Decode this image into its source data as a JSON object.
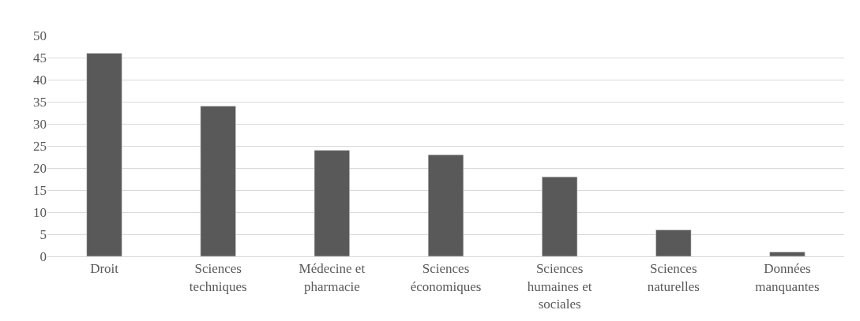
{
  "chart_data": {
    "type": "bar",
    "categories": [
      "Droit",
      "Sciences techniques",
      "Médecine et pharmacie",
      "Sciences économiques",
      "Sciences humaines et sociales",
      "Sciences naturelles",
      "Données manquantes"
    ],
    "values": [
      46,
      34,
      24,
      23,
      18,
      6,
      1
    ],
    "color": "#595959",
    "ylim": [
      0,
      50
    ],
    "yticks": [
      0,
      5,
      10,
      15,
      20,
      25,
      30,
      35,
      40,
      45,
      50
    ],
    "grid": "y"
  }
}
